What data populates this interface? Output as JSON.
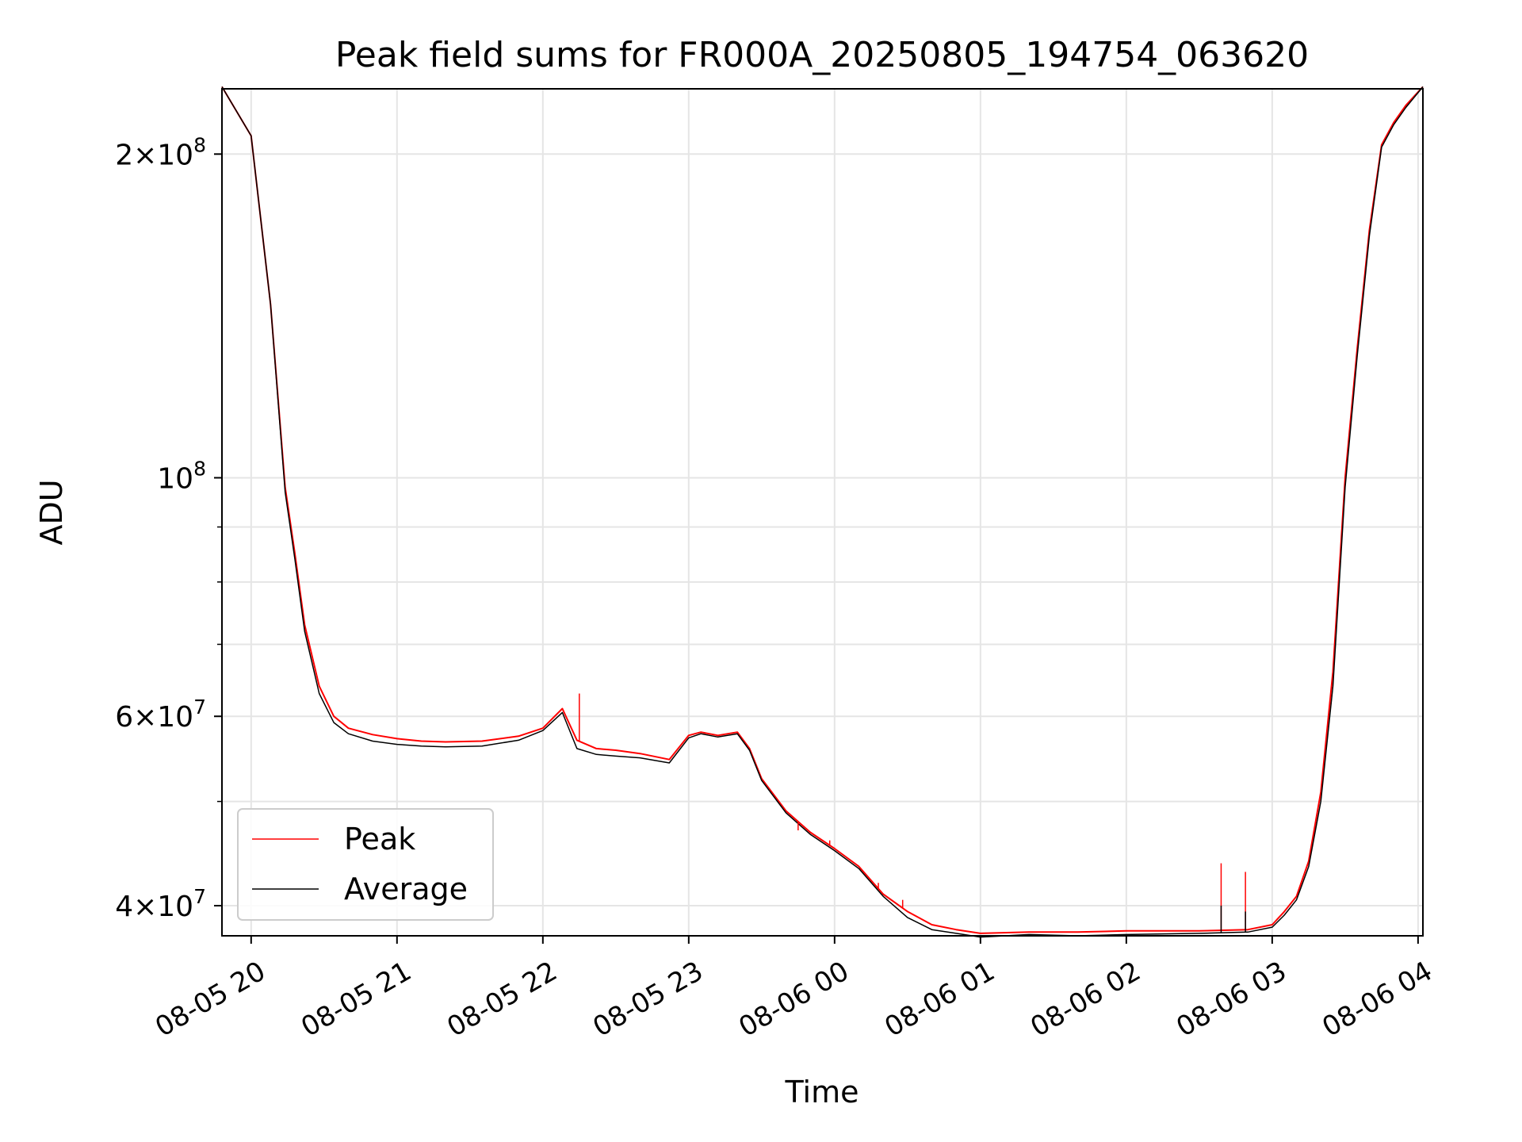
{
  "chart_data": {
    "type": "line",
    "title": "Peak field sums for FR000A_20250805_194754_063620",
    "xlabel": "Time",
    "ylabel": "ADU",
    "yscale": "log",
    "grid": true,
    "legend_position": "lower-left",
    "xlim": [
      "2025-08-05T19:48",
      "2025-08-06T04:02"
    ],
    "ylim": [
      37500000,
      230000000
    ],
    "x_ticks": [
      {
        "value": "2025-08-05T20:00",
        "label": "08-05 20"
      },
      {
        "value": "2025-08-05T21:00",
        "label": "08-05 21"
      },
      {
        "value": "2025-08-05T22:00",
        "label": "08-05 22"
      },
      {
        "value": "2025-08-05T23:00",
        "label": "08-05 23"
      },
      {
        "value": "2025-08-06T00:00",
        "label": "08-06 00"
      },
      {
        "value": "2025-08-06T01:00",
        "label": "08-06 01"
      },
      {
        "value": "2025-08-06T02:00",
        "label": "08-06 02"
      },
      {
        "value": "2025-08-06T03:00",
        "label": "08-06 03"
      },
      {
        "value": "2025-08-06T04:00",
        "label": "08-06 04"
      }
    ],
    "y_ticks_major": [
      {
        "value": 40000000,
        "mantissa": "4",
        "exponent": "7"
      },
      {
        "value": 60000000,
        "mantissa": "6",
        "exponent": "7"
      },
      {
        "value": 100000000,
        "mantissa": "",
        "exponent": "8"
      },
      {
        "value": 200000000,
        "mantissa": "2",
        "exponent": "8"
      }
    ],
    "y_ticks_minor": [
      50000000,
      70000000,
      80000000,
      90000000
    ],
    "series": [
      {
        "name": "Peak",
        "color": "#ff0000",
        "x": [
          "2025-08-05T19:48",
          "2025-08-05T20:00",
          "2025-08-05T20:08",
          "2025-08-05T20:14",
          "2025-08-05T20:18",
          "2025-08-05T20:22",
          "2025-08-05T20:28",
          "2025-08-05T20:34",
          "2025-08-05T20:40",
          "2025-08-05T20:50",
          "2025-08-05T21:00",
          "2025-08-05T21:10",
          "2025-08-05T21:20",
          "2025-08-05T21:35",
          "2025-08-05T21:50",
          "2025-08-05T22:00",
          "2025-08-05T22:08",
          "2025-08-05T22:14",
          "2025-08-05T22:22",
          "2025-08-05T22:30",
          "2025-08-05T22:40",
          "2025-08-05T22:52",
          "2025-08-05T23:00",
          "2025-08-05T23:05",
          "2025-08-05T23:12",
          "2025-08-05T23:20",
          "2025-08-05T23:25",
          "2025-08-05T23:30",
          "2025-08-05T23:40",
          "2025-08-05T23:50",
          "2025-08-06T00:00",
          "2025-08-06T00:10",
          "2025-08-06T00:20",
          "2025-08-06T00:30",
          "2025-08-06T00:40",
          "2025-08-06T00:50",
          "2025-08-06T01:00",
          "2025-08-06T01:20",
          "2025-08-06T01:40",
          "2025-08-06T02:00",
          "2025-08-06T02:30",
          "2025-08-06T02:50",
          "2025-08-06T03:00",
          "2025-08-06T03:05",
          "2025-08-06T03:10",
          "2025-08-06T03:15",
          "2025-08-06T03:20",
          "2025-08-06T03:25",
          "2025-08-06T03:30",
          "2025-08-06T03:35",
          "2025-08-06T03:40",
          "2025-08-06T03:45",
          "2025-08-06T03:50",
          "2025-08-06T03:55",
          "2025-08-06T04:02"
        ],
        "y": [
          231000000,
          208000000,
          145000000,
          98000000,
          85000000,
          73000000,
          64000000,
          60000000,
          58500000,
          57700000,
          57200000,
          56900000,
          56800000,
          56900000,
          57500000,
          58500000,
          61000000,
          57000000,
          56000000,
          55800000,
          55400000,
          54700000,
          57600000,
          58000000,
          57600000,
          58000000,
          56000000,
          52500000,
          49000000,
          46800000,
          45200000,
          43500000,
          41000000,
          39500000,
          38400000,
          38000000,
          37700000,
          37800000,
          37800000,
          37900000,
          37900000,
          38000000,
          38400000,
          39500000,
          40800000,
          44000000,
          51000000,
          66000000,
          100000000,
          132000000,
          170000000,
          204000000,
          214000000,
          222000000,
          231000000
        ]
      },
      {
        "name": "Average",
        "color": "#000000",
        "x": [
          "2025-08-05T19:48",
          "2025-08-05T20:00",
          "2025-08-05T20:08",
          "2025-08-05T20:14",
          "2025-08-05T20:18",
          "2025-08-05T20:22",
          "2025-08-05T20:28",
          "2025-08-05T20:34",
          "2025-08-05T20:40",
          "2025-08-05T20:50",
          "2025-08-05T21:00",
          "2025-08-05T21:10",
          "2025-08-05T21:20",
          "2025-08-05T21:35",
          "2025-08-05T21:50",
          "2025-08-05T22:00",
          "2025-08-05T22:08",
          "2025-08-05T22:14",
          "2025-08-05T22:22",
          "2025-08-05T22:30",
          "2025-08-05T22:40",
          "2025-08-05T22:52",
          "2025-08-05T23:00",
          "2025-08-05T23:05",
          "2025-08-05T23:12",
          "2025-08-05T23:20",
          "2025-08-05T23:25",
          "2025-08-05T23:30",
          "2025-08-05T23:40",
          "2025-08-05T23:50",
          "2025-08-06T00:00",
          "2025-08-06T00:10",
          "2025-08-06T00:20",
          "2025-08-06T00:30",
          "2025-08-06T00:40",
          "2025-08-06T00:50",
          "2025-08-06T01:00",
          "2025-08-06T01:20",
          "2025-08-06T01:40",
          "2025-08-06T02:00",
          "2025-08-06T02:30",
          "2025-08-06T02:50",
          "2025-08-06T03:00",
          "2025-08-06T03:05",
          "2025-08-06T03:10",
          "2025-08-06T03:15",
          "2025-08-06T03:20",
          "2025-08-06T03:25",
          "2025-08-06T03:30",
          "2025-08-06T03:35",
          "2025-08-06T03:40",
          "2025-08-06T03:45",
          "2025-08-06T03:50",
          "2025-08-06T03:55",
          "2025-08-06T04:02"
        ],
        "y": [
          231000000,
          208000000,
          145000000,
          97000000,
          84000000,
          72000000,
          63000000,
          59200000,
          57800000,
          56900000,
          56500000,
          56300000,
          56200000,
          56300000,
          57000000,
          58200000,
          60500000,
          56000000,
          55300000,
          55100000,
          54900000,
          54300000,
          57300000,
          57800000,
          57400000,
          57800000,
          55800000,
          52300000,
          48800000,
          46600000,
          45000000,
          43300000,
          40800000,
          39000000,
          38000000,
          37700000,
          37400000,
          37600000,
          37500000,
          37600000,
          37700000,
          37800000,
          38200000,
          39200000,
          40500000,
          43500000,
          50000000,
          64000000,
          98000000,
          130000000,
          168000000,
          203000000,
          213000000,
          221000000,
          231000000
        ]
      }
    ],
    "spikes": [
      {
        "series": "Peak",
        "x": "2025-08-05T22:15",
        "y": 63000000
      },
      {
        "series": "Peak",
        "x": "2025-08-05T23:45",
        "y": 47000000
      },
      {
        "series": "Peak",
        "x": "2025-08-05T23:58",
        "y": 46000000
      },
      {
        "series": "Peak",
        "x": "2025-08-06T00:18",
        "y": 42000000
      },
      {
        "series": "Peak",
        "x": "2025-08-06T00:28",
        "y": 40500000
      },
      {
        "series": "Peak",
        "x": "2025-08-06T02:39",
        "y": 43800000
      },
      {
        "series": "Peak",
        "x": "2025-08-06T02:49",
        "y": 43000000
      },
      {
        "series": "Average",
        "x": "2025-08-06T02:39",
        "y": 40000000
      },
      {
        "series": "Average",
        "x": "2025-08-06T02:49",
        "y": 39500000
      }
    ]
  }
}
